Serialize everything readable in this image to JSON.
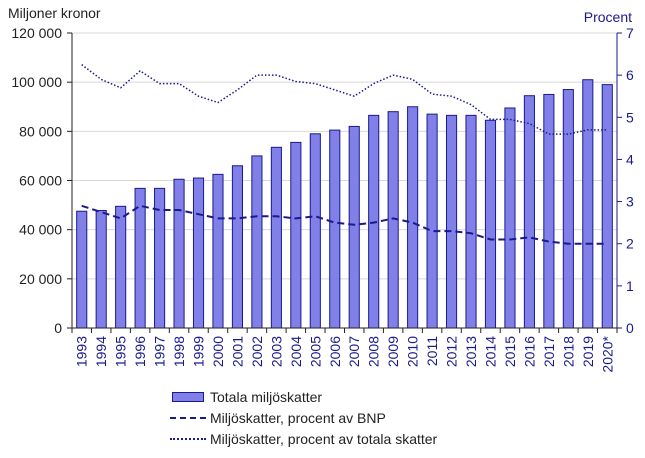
{
  "chart_data": {
    "type": "bar",
    "ylabel_left": "Miljoner kronor",
    "ylabel_right": "Procent",
    "categories": [
      "1993",
      "1994",
      "1995",
      "1996",
      "1997",
      "1998",
      "1999",
      "2000",
      "2001",
      "2002",
      "2003",
      "2004",
      "2005",
      "2006",
      "2007",
      "2008",
      "2009",
      "2010",
      "2011",
      "2012",
      "2013",
      "2014",
      "2015",
      "2016",
      "2017",
      "2018",
      "2019",
      "2020*"
    ],
    "ylim_left": [
      0,
      120000
    ],
    "yticks_left": [
      0,
      20000,
      40000,
      60000,
      80000,
      100000,
      120000
    ],
    "ytick_labels_left": [
      "0",
      "20 000",
      "40 000",
      "60 000",
      "80 000",
      "100 000",
      "120 000"
    ],
    "ylim_right": [
      0,
      7
    ],
    "yticks_right": [
      0,
      1,
      2,
      3,
      4,
      5,
      6,
      7
    ],
    "ytick_labels_right": [
      "0",
      "1",
      "2",
      "3",
      "4",
      "5",
      "6",
      "7"
    ],
    "series": [
      {
        "name": "Totala miljöskatter",
        "type": "bar",
        "axis": "left",
        "values": [
          47500,
          47800,
          49500,
          56800,
          56800,
          60500,
          61000,
          62500,
          66000,
          70000,
          73500,
          75500,
          79000,
          80500,
          82000,
          86500,
          88000,
          90000,
          87000,
          86500,
          86500,
          84500,
          89500,
          94500,
          95000,
          97000,
          101000,
          99000
        ]
      },
      {
        "name": "Miljöskatter, procent av BNP",
        "type": "line",
        "style": "dashed",
        "axis": "right",
        "values": [
          2.9,
          2.75,
          2.6,
          2.9,
          2.8,
          2.8,
          2.7,
          2.6,
          2.6,
          2.65,
          2.65,
          2.6,
          2.65,
          2.5,
          2.45,
          2.5,
          2.6,
          2.5,
          2.3,
          2.3,
          2.25,
          2.1,
          2.1,
          2.15,
          2.05,
          2.0,
          2.0,
          2.0
        ]
      },
      {
        "name": "Miljöskatter, procent av totala skatter",
        "type": "line",
        "style": "dotted",
        "axis": "right",
        "values": [
          6.25,
          5.9,
          5.7,
          6.1,
          5.8,
          5.8,
          5.5,
          5.35,
          5.65,
          6.0,
          6.0,
          5.85,
          5.8,
          5.65,
          5.5,
          5.8,
          6.0,
          5.9,
          5.55,
          5.5,
          5.3,
          4.95,
          4.95,
          4.85,
          4.6,
          4.6,
          4.7,
          4.7
        ]
      }
    ],
    "legend_position": "bottom",
    "grid": true
  },
  "colors": {
    "bar_fill": "#8080e8",
    "bar_stroke": "#1a1a8c",
    "line": "#1a1a8c",
    "grid": "#d8d8d8"
  }
}
